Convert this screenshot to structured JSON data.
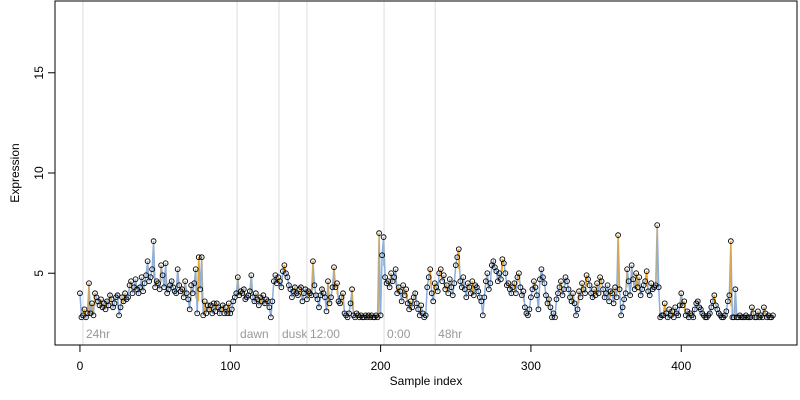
{
  "chart_data": {
    "type": "scatter",
    "xlabel": "Sample index",
    "ylabel": "Expression",
    "xlim": [
      -16.6,
      477
    ],
    "ylim": [
      1.42,
      18.58
    ],
    "xticks": [
      0,
      100,
      200,
      300,
      400
    ],
    "yticks": [
      5,
      10,
      15
    ],
    "point_color": "#000000",
    "up_color": "#ffa500",
    "line_color": "#8aaee0",
    "marker_color": "#dddddd",
    "markers": [
      {
        "x": 2,
        "label": "24hr"
      },
      {
        "x": 104.5,
        "label": "dawn"
      },
      {
        "x": 132.4,
        "label": "dusk"
      },
      {
        "x": 151,
        "label": "12:00"
      },
      {
        "x": 202.3,
        "label": "0:00"
      },
      {
        "x": 236.3,
        "label": "48hr"
      }
    ],
    "values": [
      4.0,
      2.8,
      2.9,
      3.2,
      2.8,
      3.0,
      4.5,
      3.0,
      3.5,
      2.9,
      4.0,
      3.8,
      3.6,
      3.4,
      3.7,
      3.3,
      3.5,
      3.2,
      3.6,
      3.4,
      3.9,
      3.7,
      3.3,
      3.5,
      3.8,
      3.9,
      2.9,
      3.3,
      3.8,
      3.6,
      4.0,
      3.7,
      3.8,
      4.4,
      4.6,
      4.0,
      4.3,
      4.7,
      4.2,
      4.0,
      4.3,
      4.8,
      4.1,
      4.5,
      4.9,
      5.6,
      4.6,
      4.8,
      5.2,
      6.6,
      4.3,
      4.6,
      4.5,
      4.2,
      5.4,
      4.9,
      4.3,
      5.5,
      4.0,
      4.2,
      4.4,
      4.6,
      4.3,
      4.1,
      4.0,
      5.2,
      4.4,
      4.1,
      4.2,
      3.8,
      4.6,
      4.0,
      3.7,
      3.2,
      4.4,
      4.0,
      4.5,
      5.2,
      3.0,
      5.8,
      4.2,
      5.8,
      2.9,
      3.6,
      3.0,
      3.4,
      3.2,
      3.4,
      3.0,
      3.5,
      3.1,
      3.5,
      3.3,
      3.0,
      3.2,
      3.4,
      3.0,
      3.3,
      3.0,
      3.5,
      3.0,
      3.2,
      3.6,
      3.8,
      4.0,
      4.8,
      3.9,
      4.1,
      4.0,
      4.2,
      3.7,
      3.8,
      3.9,
      4.1,
      4.9,
      3.8,
      3.6,
      4.0,
      3.7,
      3.4,
      3.8,
      3.6,
      3.9,
      3.5,
      3.7,
      3.6,
      3.3,
      2.8,
      3.6,
      4.6,
      4.9,
      4.5,
      4.8,
      4.6,
      4.3,
      5.1,
      5.4,
      5.0,
      4.8,
      4.4,
      4.2,
      3.8,
      4.1,
      4.3,
      4.0,
      3.9,
      4.2,
      4.3,
      3.6,
      4.0,
      4.2,
      3.7,
      4.1,
      4.0,
      3.9,
      5.6,
      4.4,
      3.9,
      3.7,
      3.3,
      3.9,
      4.2,
      4.0,
      3.8,
      3.1,
      4.6,
      3.5,
      3.8,
      4.3,
      5.3,
      4.3,
      4.5,
      3.6,
      3.5,
      3.8,
      4.0,
      3.0,
      2.9,
      2.8,
      3.0,
      3.5,
      4.2,
      2.9,
      2.8,
      3.0,
      2.9,
      2.8,
      2.9,
      2.8,
      2.8,
      2.9,
      2.8,
      2.9,
      2.8,
      2.9,
      2.8,
      2.8,
      2.9,
      2.8,
      7.0,
      2.9,
      5.9,
      6.8,
      4.8,
      4.5,
      4.6,
      4.3,
      5.0,
      4.6,
      4.8,
      5.2,
      4.0,
      4.3,
      4.1,
      3.6,
      4.4,
      3.9,
      4.2,
      3.5,
      3.2,
      3.6,
      3.3,
      3.8,
      4.0,
      3.5,
      3.2,
      2.9,
      3.4,
      3.0,
      2.8,
      2.9,
      4.3,
      4.8,
      5.2,
      4.0,
      3.6,
      4.5,
      4.3,
      4.1,
      5.0,
      5.2,
      4.6,
      4.9,
      4.2,
      4.4,
      4.0,
      4.7,
      4.3,
      3.9,
      4.5,
      5.4,
      5.8,
      6.2,
      4.6,
      4.3,
      4.8,
      4.2,
      3.8,
      4.5,
      4.3,
      4.0,
      4.6,
      3.9,
      4.4,
      4.3,
      4.1,
      3.8,
      3.6,
      2.9,
      3.8,
      4.6,
      5.0,
      4.2,
      4.5,
      5.4,
      5.6,
      5.3,
      5.1,
      4.6,
      5.0,
      4.7,
      5.7,
      5.5,
      5.0,
      4.4,
      4.5,
      4.2,
      4.0,
      4.3,
      4.5,
      4.0,
      4.8,
      5.0,
      4.3,
      3.9,
      4.1,
      3.3,
      3.0,
      2.9,
      3.2,
      3.8,
      4.2,
      4.6,
      4.3,
      3.9,
      3.2,
      4.7,
      5.2,
      4.8,
      4.5,
      3.9,
      3.5,
      3.7,
      3.3,
      2.8,
      3.0,
      2.8,
      3.7,
      4.0,
      4.3,
      4.6,
      3.9,
      4.2,
      4.8,
      4.6,
      4.2,
      3.8,
      3.6,
      4.0,
      3.5,
      2.9,
      3.2,
      4.1,
      3.8,
      4.5,
      4.2,
      4.0,
      4.9,
      4.7,
      4.4,
      4.0,
      3.8,
      4.2,
      3.9,
      4.5,
      4.0,
      4.8,
      4.6,
      4.2,
      3.8,
      4.0,
      4.4,
      3.6,
      4.1,
      4.0,
      3.5,
      4.3,
      3.8,
      6.9,
      4.2,
      2.9,
      3.3,
      3.7,
      4.0,
      5.2,
      4.6,
      3.9,
      5.4,
      4.7,
      4.2,
      5.0,
      4.3,
      4.8,
      3.9,
      4.2,
      4.4,
      4.6,
      5.1,
      4.1,
      3.9,
      4.5,
      4.2,
      4.3,
      4.4,
      7.4,
      4.3,
      2.8,
      2.9,
      2.9,
      3.5,
      3.0,
      2.8,
      3.2,
      2.9,
      3.1,
      2.8,
      3.3,
      3.0,
      2.9,
      3.4,
      4.0,
      3.4,
      3.6,
      2.9,
      3.1,
      2.8,
      3.0,
      2.9,
      2.8,
      3.2,
      3.5,
      3.6,
      3.3,
      3.2,
      3.0,
      2.9,
      2.8,
      2.8,
      2.9,
      3.0,
      3.3,
      3.6,
      3.9,
      3.4,
      3.2,
      3.0,
      2.9,
      2.8,
      2.8,
      2.9,
      3.1,
      3.6,
      3.9,
      6.6,
      2.8,
      2.8,
      4.2,
      2.8,
      2.8,
      2.9,
      2.8,
      2.8,
      2.8,
      2.9,
      2.8,
      2.8,
      2.8,
      3.3,
      3.0,
      2.8,
      2.8,
      3.1,
      2.8,
      2.9,
      2.8,
      3.3,
      3.0,
      2.8,
      2.9,
      2.8,
      2.8,
      2.9
    ]
  }
}
